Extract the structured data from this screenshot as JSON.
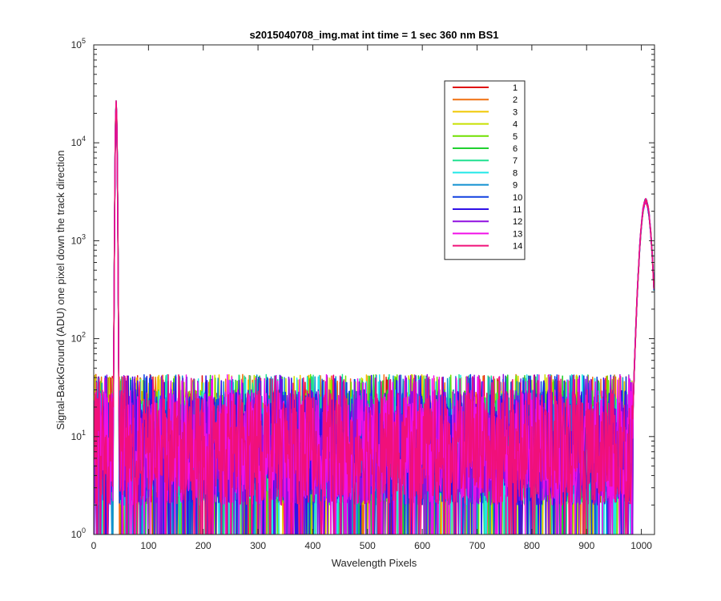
{
  "chart_data": {
    "type": "line",
    "title": "s2015040708_img.mat int time = 1 sec  360 nm BS1",
    "xlabel": "Wavelength Pixels",
    "ylabel": "Signal-BackGround (ADU) one pixel down the track direction",
    "xlim": [
      0,
      1024
    ],
    "ylim": [
      1,
      100000
    ],
    "y_scale": "log",
    "grid": false,
    "legend_position": "top-right",
    "x_ticks": [
      "0",
      "100",
      "200",
      "300",
      "400",
      "500",
      "600",
      "700",
      "800",
      "900",
      "1000"
    ],
    "x_tick_values": [
      0,
      100,
      200,
      300,
      400,
      500,
      600,
      700,
      800,
      900,
      1000
    ],
    "y_ticks": [
      {
        "base": "10",
        "exp": "0",
        "value": 1
      },
      {
        "base": "10",
        "exp": "1",
        "value": 10
      },
      {
        "base": "10",
        "exp": "2",
        "value": 100
      },
      {
        "base": "10",
        "exp": "3",
        "value": 1000
      },
      {
        "base": "10",
        "exp": "4",
        "value": 10000
      },
      {
        "base": "10",
        "exp": "5",
        "value": 100000
      }
    ],
    "peaks": [
      {
        "x": 41,
        "y": 27000
      },
      {
        "x": 1008,
        "y": 2700
      }
    ],
    "baseline_range": [
      2,
      30
    ],
    "series": [
      {
        "name": "1",
        "color": "#e01010"
      },
      {
        "name": "2",
        "color": "#f07010"
      },
      {
        "name": "3",
        "color": "#f0c800"
      },
      {
        "name": "4",
        "color": "#c8e000"
      },
      {
        "name": "5",
        "color": "#70e000"
      },
      {
        "name": "6",
        "color": "#20d030"
      },
      {
        "name": "7",
        "color": "#20e090"
      },
      {
        "name": "8",
        "color": "#20e8e8"
      },
      {
        "name": "9",
        "color": "#1090d0"
      },
      {
        "name": "10",
        "color": "#1040e0"
      },
      {
        "name": "11",
        "color": "#3010e8"
      },
      {
        "name": "12",
        "color": "#9010e0"
      },
      {
        "name": "13",
        "color": "#f010e8"
      },
      {
        "name": "14",
        "color": "#f0107a"
      }
    ]
  }
}
